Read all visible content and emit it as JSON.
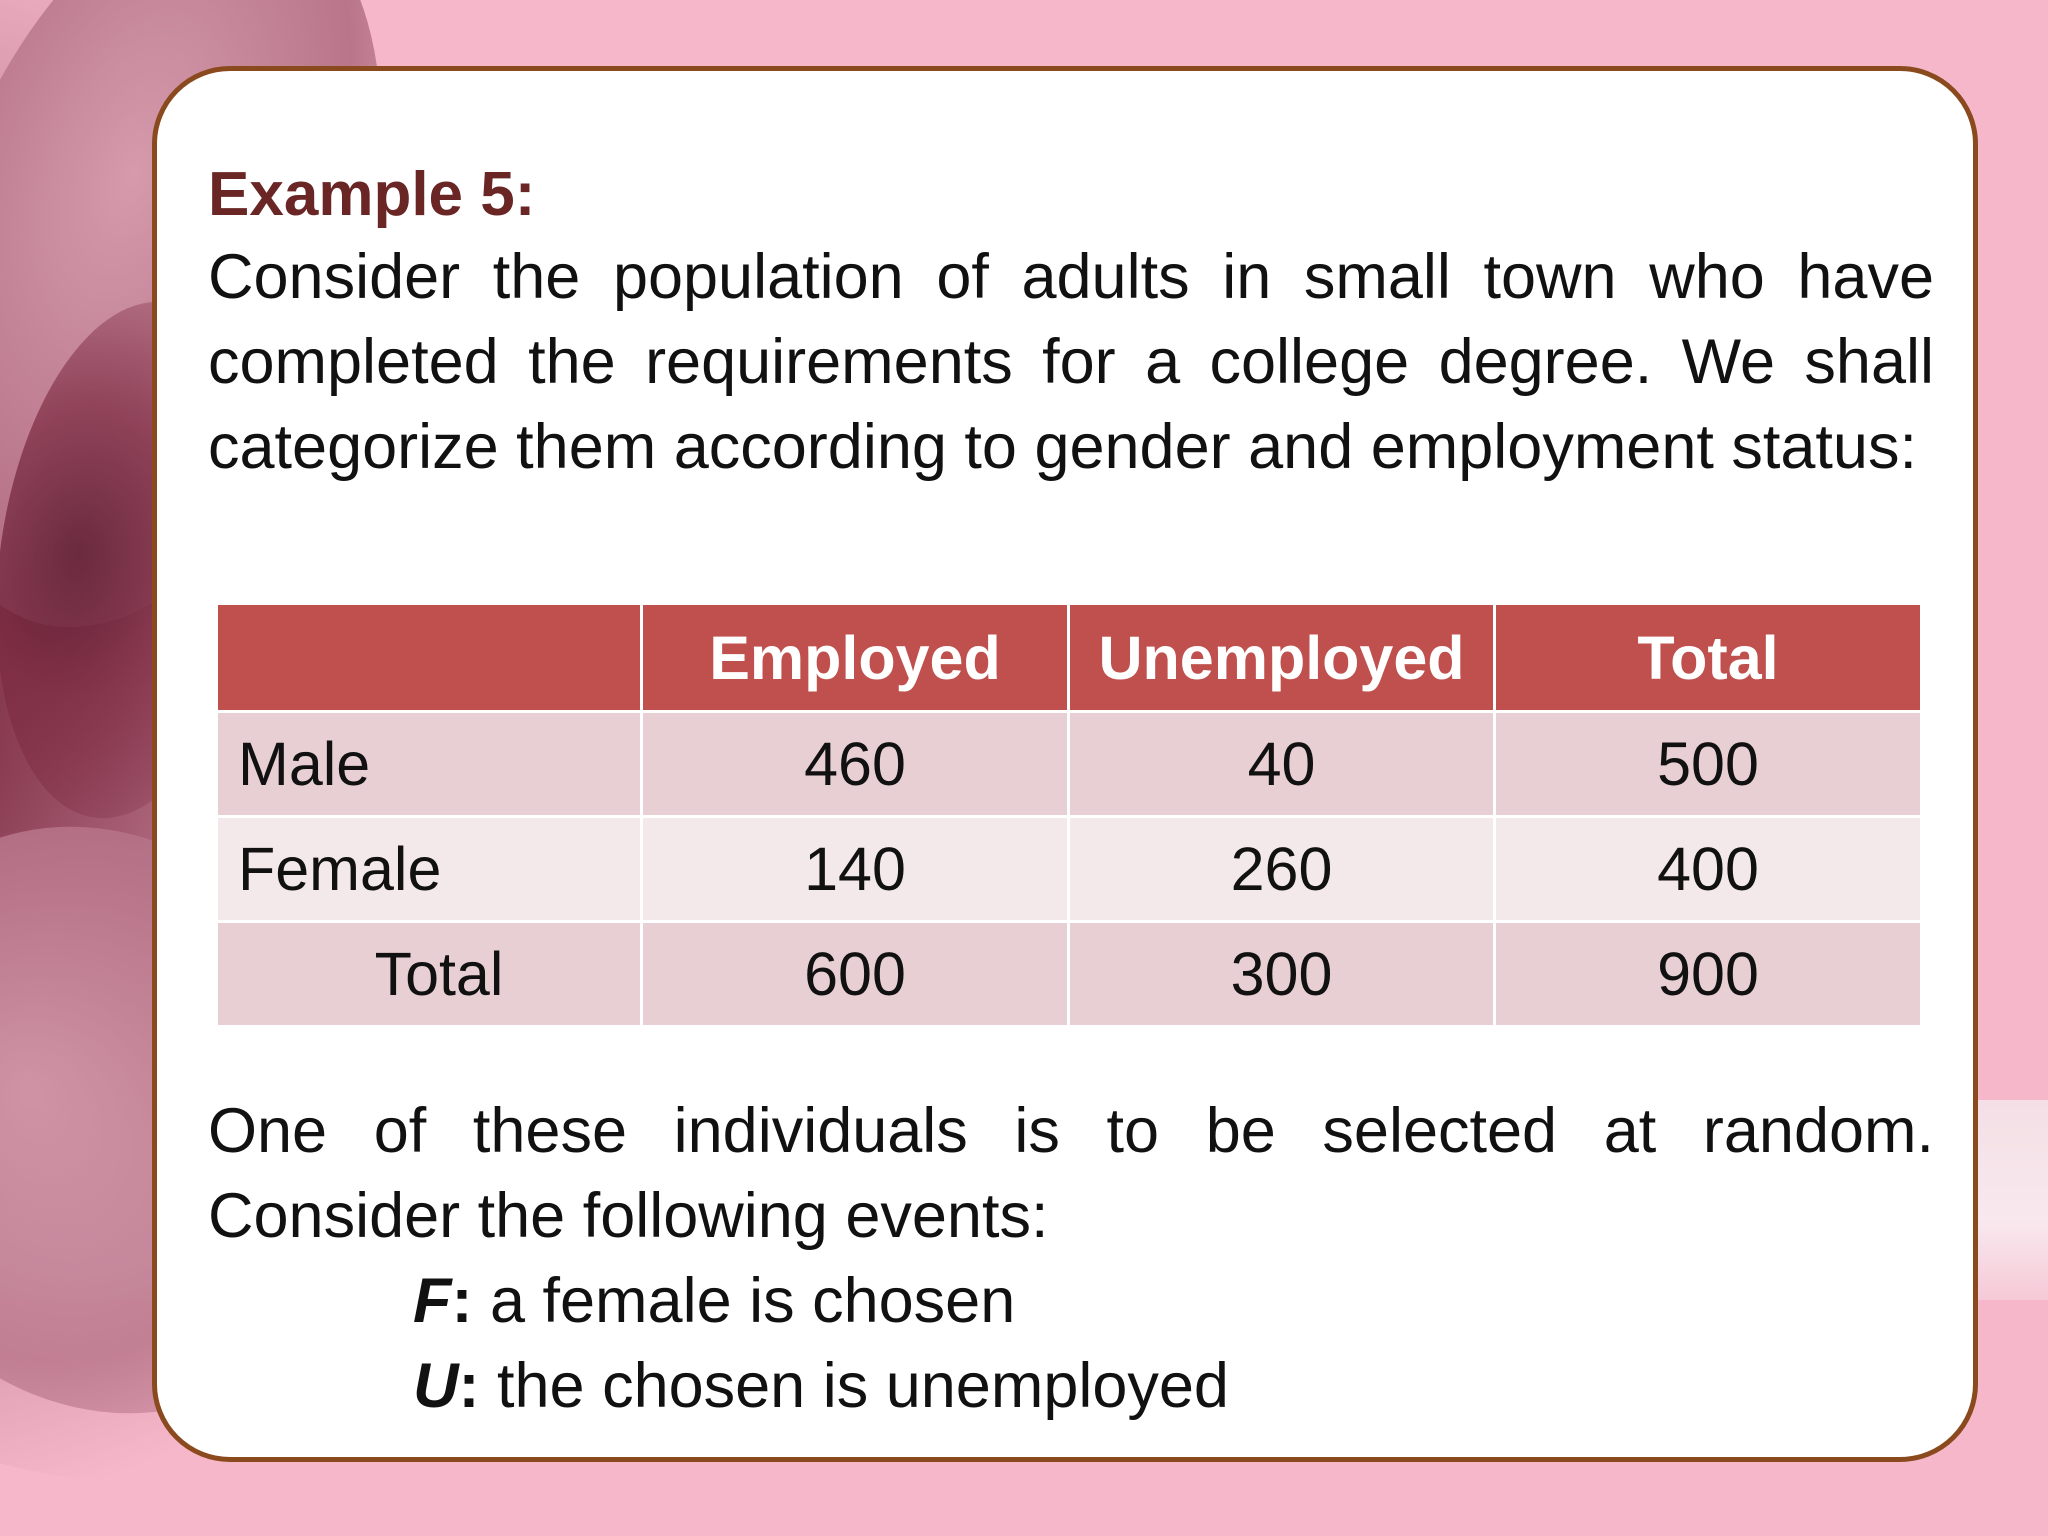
{
  "example": {
    "heading": "Example 5:",
    "intro": "Consider the population of adults in small town who have completed the requirements for a college degree. We shall categorize them according to gender and employment status:"
  },
  "table": {
    "headers": [
      "",
      "Employed",
      "Unemployed",
      "Total"
    ],
    "rows": [
      {
        "label": "Male",
        "employed": "460",
        "unemployed": "40",
        "total": "500"
      },
      {
        "label": "Female",
        "employed": "140",
        "unemployed": "260",
        "total": "400"
      },
      {
        "label": "Total",
        "employed": "600",
        "unemployed": "300",
        "total": "900"
      }
    ]
  },
  "followup": {
    "text": "One of these individuals is to be selected at random. Consider the following events:",
    "events": [
      {
        "symbol": "F",
        "colon": ":",
        "description": " a female is chosen"
      },
      {
        "symbol": "U",
        "colon": ":",
        "description": " the chosen is unemployed"
      }
    ]
  },
  "colors": {
    "header_bg": "#c0504d",
    "row_odd": "#e8cfd3",
    "row_even": "#f3e8ea",
    "heading_text": "#6a2525",
    "card_border": "#8a4a1e"
  }
}
